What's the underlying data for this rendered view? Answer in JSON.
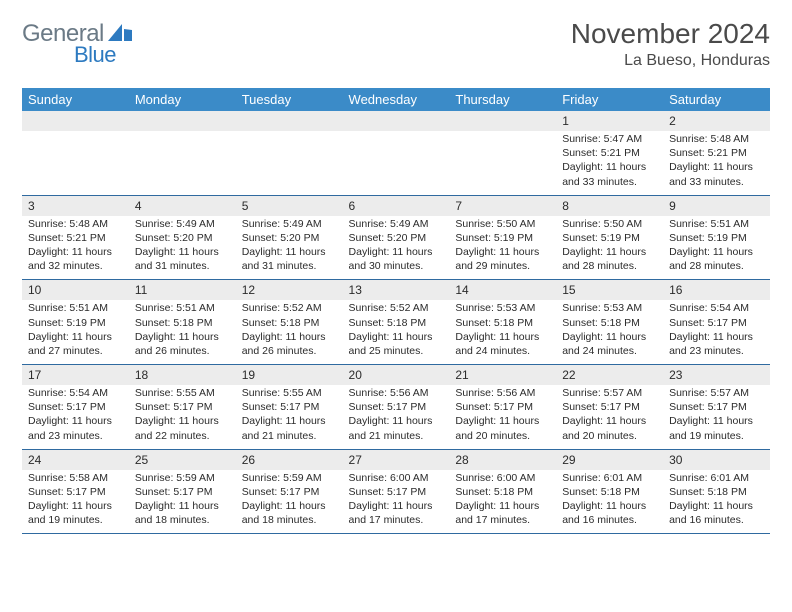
{
  "logo": {
    "word1": "General",
    "word2": "Blue"
  },
  "title": "November 2024",
  "location": "La Bueso, Honduras",
  "colors": {
    "dow_header_bg": "#3b8bc8",
    "dow_header_fg": "#ffffff",
    "daynum_bg": "#ececec",
    "rule_color": "#2f6aa0",
    "page_bg": "#ffffff",
    "text": "#333333",
    "logo_gray": "#6b7a86",
    "logo_blue": "#2d7ac0"
  },
  "typography": {
    "title_fontsize": 28,
    "location_fontsize": 16,
    "dow_fontsize": 13,
    "daynum_fontsize": 12,
    "cell_fontsize": 10.5,
    "font_family": "Arial"
  },
  "dow": [
    "Sunday",
    "Monday",
    "Tuesday",
    "Wednesday",
    "Thursday",
    "Friday",
    "Saturday"
  ],
  "weeks": [
    [
      null,
      null,
      null,
      null,
      null,
      {
        "n": "1",
        "sunrise": "5:47 AM",
        "sunset": "5:21 PM",
        "daylight": "11 hours and 33 minutes."
      },
      {
        "n": "2",
        "sunrise": "5:48 AM",
        "sunset": "5:21 PM",
        "daylight": "11 hours and 33 minutes."
      }
    ],
    [
      {
        "n": "3",
        "sunrise": "5:48 AM",
        "sunset": "5:21 PM",
        "daylight": "11 hours and 32 minutes."
      },
      {
        "n": "4",
        "sunrise": "5:49 AM",
        "sunset": "5:20 PM",
        "daylight": "11 hours and 31 minutes."
      },
      {
        "n": "5",
        "sunrise": "5:49 AM",
        "sunset": "5:20 PM",
        "daylight": "11 hours and 31 minutes."
      },
      {
        "n": "6",
        "sunrise": "5:49 AM",
        "sunset": "5:20 PM",
        "daylight": "11 hours and 30 minutes."
      },
      {
        "n": "7",
        "sunrise": "5:50 AM",
        "sunset": "5:19 PM",
        "daylight": "11 hours and 29 minutes."
      },
      {
        "n": "8",
        "sunrise": "5:50 AM",
        "sunset": "5:19 PM",
        "daylight": "11 hours and 28 minutes."
      },
      {
        "n": "9",
        "sunrise": "5:51 AM",
        "sunset": "5:19 PM",
        "daylight": "11 hours and 28 minutes."
      }
    ],
    [
      {
        "n": "10",
        "sunrise": "5:51 AM",
        "sunset": "5:19 PM",
        "daylight": "11 hours and 27 minutes."
      },
      {
        "n": "11",
        "sunrise": "5:51 AM",
        "sunset": "5:18 PM",
        "daylight": "11 hours and 26 minutes."
      },
      {
        "n": "12",
        "sunrise": "5:52 AM",
        "sunset": "5:18 PM",
        "daylight": "11 hours and 26 minutes."
      },
      {
        "n": "13",
        "sunrise": "5:52 AM",
        "sunset": "5:18 PM",
        "daylight": "11 hours and 25 minutes."
      },
      {
        "n": "14",
        "sunrise": "5:53 AM",
        "sunset": "5:18 PM",
        "daylight": "11 hours and 24 minutes."
      },
      {
        "n": "15",
        "sunrise": "5:53 AM",
        "sunset": "5:18 PM",
        "daylight": "11 hours and 24 minutes."
      },
      {
        "n": "16",
        "sunrise": "5:54 AM",
        "sunset": "5:17 PM",
        "daylight": "11 hours and 23 minutes."
      }
    ],
    [
      {
        "n": "17",
        "sunrise": "5:54 AM",
        "sunset": "5:17 PM",
        "daylight": "11 hours and 23 minutes."
      },
      {
        "n": "18",
        "sunrise": "5:55 AM",
        "sunset": "5:17 PM",
        "daylight": "11 hours and 22 minutes."
      },
      {
        "n": "19",
        "sunrise": "5:55 AM",
        "sunset": "5:17 PM",
        "daylight": "11 hours and 21 minutes."
      },
      {
        "n": "20",
        "sunrise": "5:56 AM",
        "sunset": "5:17 PM",
        "daylight": "11 hours and 21 minutes."
      },
      {
        "n": "21",
        "sunrise": "5:56 AM",
        "sunset": "5:17 PM",
        "daylight": "11 hours and 20 minutes."
      },
      {
        "n": "22",
        "sunrise": "5:57 AM",
        "sunset": "5:17 PM",
        "daylight": "11 hours and 20 minutes."
      },
      {
        "n": "23",
        "sunrise": "5:57 AM",
        "sunset": "5:17 PM",
        "daylight": "11 hours and 19 minutes."
      }
    ],
    [
      {
        "n": "24",
        "sunrise": "5:58 AM",
        "sunset": "5:17 PM",
        "daylight": "11 hours and 19 minutes."
      },
      {
        "n": "25",
        "sunrise": "5:59 AM",
        "sunset": "5:17 PM",
        "daylight": "11 hours and 18 minutes."
      },
      {
        "n": "26",
        "sunrise": "5:59 AM",
        "sunset": "5:17 PM",
        "daylight": "11 hours and 18 minutes."
      },
      {
        "n": "27",
        "sunrise": "6:00 AM",
        "sunset": "5:17 PM",
        "daylight": "11 hours and 17 minutes."
      },
      {
        "n": "28",
        "sunrise": "6:00 AM",
        "sunset": "5:18 PM",
        "daylight": "11 hours and 17 minutes."
      },
      {
        "n": "29",
        "sunrise": "6:01 AM",
        "sunset": "5:18 PM",
        "daylight": "11 hours and 16 minutes."
      },
      {
        "n": "30",
        "sunrise": "6:01 AM",
        "sunset": "5:18 PM",
        "daylight": "11 hours and 16 minutes."
      }
    ]
  ],
  "labels": {
    "sunrise": "Sunrise:",
    "sunset": "Sunset:",
    "daylight": "Daylight:"
  }
}
